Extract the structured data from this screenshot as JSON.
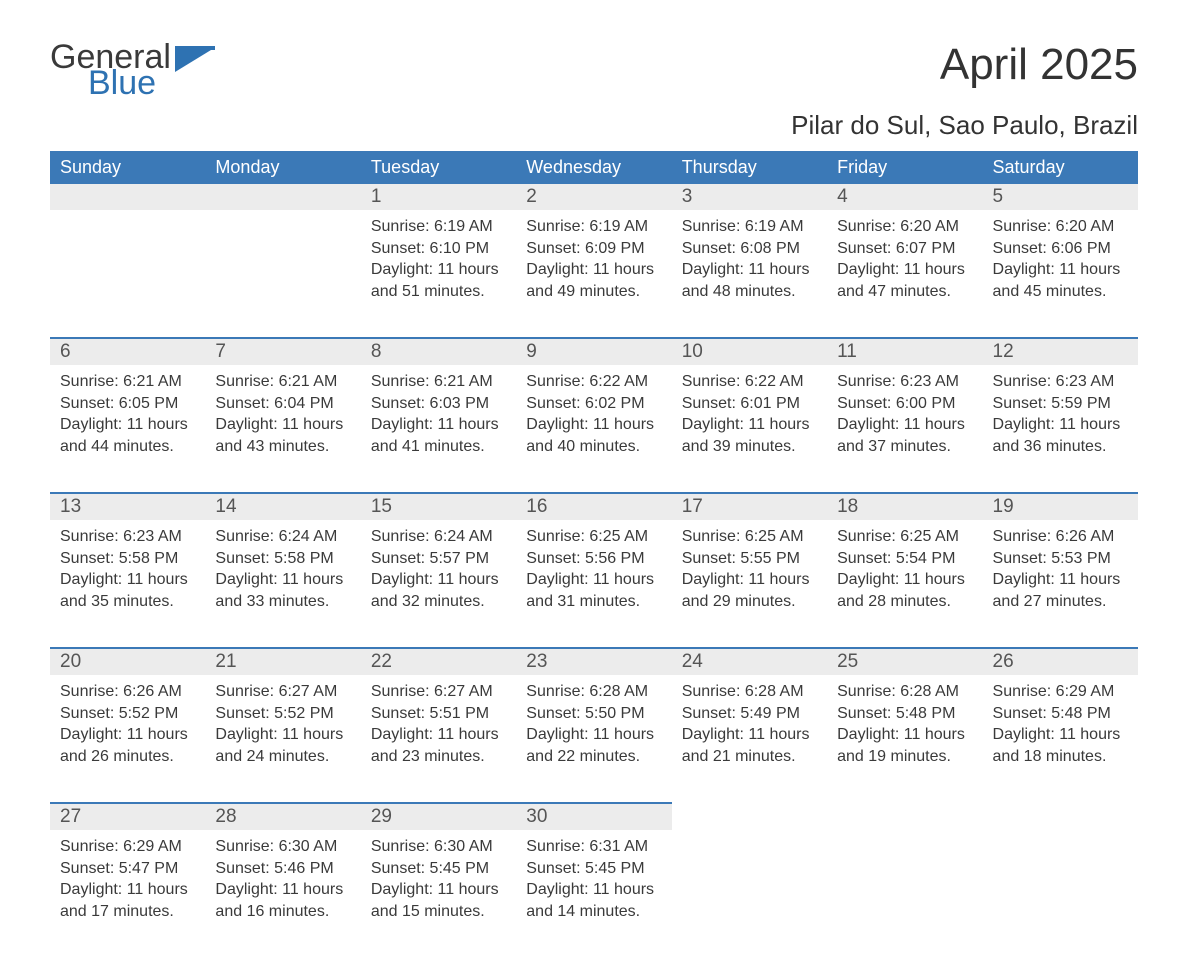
{
  "logo": {
    "text1": "General",
    "text2": "Blue",
    "icon_color": "#2e72b2"
  },
  "title": "April 2025",
  "subtitle": "Pilar do Sul, Sao Paulo, Brazil",
  "colors": {
    "header_bg": "#3b79b7",
    "header_text": "#ffffff",
    "daynum_bg": "#ececec",
    "row_border": "#3b79b7",
    "body_text": "#3a3a3a",
    "brand_blue": "#2e72b2"
  },
  "weekdays": [
    "Sunday",
    "Monday",
    "Tuesday",
    "Wednesday",
    "Thursday",
    "Friday",
    "Saturday"
  ],
  "weeks": [
    [
      null,
      null,
      {
        "n": "1",
        "sunrise": "Sunrise: 6:19 AM",
        "sunset": "Sunset: 6:10 PM",
        "d1": "Daylight: 11 hours",
        "d2": "and 51 minutes."
      },
      {
        "n": "2",
        "sunrise": "Sunrise: 6:19 AM",
        "sunset": "Sunset: 6:09 PM",
        "d1": "Daylight: 11 hours",
        "d2": "and 49 minutes."
      },
      {
        "n": "3",
        "sunrise": "Sunrise: 6:19 AM",
        "sunset": "Sunset: 6:08 PM",
        "d1": "Daylight: 11 hours",
        "d2": "and 48 minutes."
      },
      {
        "n": "4",
        "sunrise": "Sunrise: 6:20 AM",
        "sunset": "Sunset: 6:07 PM",
        "d1": "Daylight: 11 hours",
        "d2": "and 47 minutes."
      },
      {
        "n": "5",
        "sunrise": "Sunrise: 6:20 AM",
        "sunset": "Sunset: 6:06 PM",
        "d1": "Daylight: 11 hours",
        "d2": "and 45 minutes."
      }
    ],
    [
      {
        "n": "6",
        "sunrise": "Sunrise: 6:21 AM",
        "sunset": "Sunset: 6:05 PM",
        "d1": "Daylight: 11 hours",
        "d2": "and 44 minutes."
      },
      {
        "n": "7",
        "sunrise": "Sunrise: 6:21 AM",
        "sunset": "Sunset: 6:04 PM",
        "d1": "Daylight: 11 hours",
        "d2": "and 43 minutes."
      },
      {
        "n": "8",
        "sunrise": "Sunrise: 6:21 AM",
        "sunset": "Sunset: 6:03 PM",
        "d1": "Daylight: 11 hours",
        "d2": "and 41 minutes."
      },
      {
        "n": "9",
        "sunrise": "Sunrise: 6:22 AM",
        "sunset": "Sunset: 6:02 PM",
        "d1": "Daylight: 11 hours",
        "d2": "and 40 minutes."
      },
      {
        "n": "10",
        "sunrise": "Sunrise: 6:22 AM",
        "sunset": "Sunset: 6:01 PM",
        "d1": "Daylight: 11 hours",
        "d2": "and 39 minutes."
      },
      {
        "n": "11",
        "sunrise": "Sunrise: 6:23 AM",
        "sunset": "Sunset: 6:00 PM",
        "d1": "Daylight: 11 hours",
        "d2": "and 37 minutes."
      },
      {
        "n": "12",
        "sunrise": "Sunrise: 6:23 AM",
        "sunset": "Sunset: 5:59 PM",
        "d1": "Daylight: 11 hours",
        "d2": "and 36 minutes."
      }
    ],
    [
      {
        "n": "13",
        "sunrise": "Sunrise: 6:23 AM",
        "sunset": "Sunset: 5:58 PM",
        "d1": "Daylight: 11 hours",
        "d2": "and 35 minutes."
      },
      {
        "n": "14",
        "sunrise": "Sunrise: 6:24 AM",
        "sunset": "Sunset: 5:58 PM",
        "d1": "Daylight: 11 hours",
        "d2": "and 33 minutes."
      },
      {
        "n": "15",
        "sunrise": "Sunrise: 6:24 AM",
        "sunset": "Sunset: 5:57 PM",
        "d1": "Daylight: 11 hours",
        "d2": "and 32 minutes."
      },
      {
        "n": "16",
        "sunrise": "Sunrise: 6:25 AM",
        "sunset": "Sunset: 5:56 PM",
        "d1": "Daylight: 11 hours",
        "d2": "and 31 minutes."
      },
      {
        "n": "17",
        "sunrise": "Sunrise: 6:25 AM",
        "sunset": "Sunset: 5:55 PM",
        "d1": "Daylight: 11 hours",
        "d2": "and 29 minutes."
      },
      {
        "n": "18",
        "sunrise": "Sunrise: 6:25 AM",
        "sunset": "Sunset: 5:54 PM",
        "d1": "Daylight: 11 hours",
        "d2": "and 28 minutes."
      },
      {
        "n": "19",
        "sunrise": "Sunrise: 6:26 AM",
        "sunset": "Sunset: 5:53 PM",
        "d1": "Daylight: 11 hours",
        "d2": "and 27 minutes."
      }
    ],
    [
      {
        "n": "20",
        "sunrise": "Sunrise: 6:26 AM",
        "sunset": "Sunset: 5:52 PM",
        "d1": "Daylight: 11 hours",
        "d2": "and 26 minutes."
      },
      {
        "n": "21",
        "sunrise": "Sunrise: 6:27 AM",
        "sunset": "Sunset: 5:52 PM",
        "d1": "Daylight: 11 hours",
        "d2": "and 24 minutes."
      },
      {
        "n": "22",
        "sunrise": "Sunrise: 6:27 AM",
        "sunset": "Sunset: 5:51 PM",
        "d1": "Daylight: 11 hours",
        "d2": "and 23 minutes."
      },
      {
        "n": "23",
        "sunrise": "Sunrise: 6:28 AM",
        "sunset": "Sunset: 5:50 PM",
        "d1": "Daylight: 11 hours",
        "d2": "and 22 minutes."
      },
      {
        "n": "24",
        "sunrise": "Sunrise: 6:28 AM",
        "sunset": "Sunset: 5:49 PM",
        "d1": "Daylight: 11 hours",
        "d2": "and 21 minutes."
      },
      {
        "n": "25",
        "sunrise": "Sunrise: 6:28 AM",
        "sunset": "Sunset: 5:48 PM",
        "d1": "Daylight: 11 hours",
        "d2": "and 19 minutes."
      },
      {
        "n": "26",
        "sunrise": "Sunrise: 6:29 AM",
        "sunset": "Sunset: 5:48 PM",
        "d1": "Daylight: 11 hours",
        "d2": "and 18 minutes."
      }
    ],
    [
      {
        "n": "27",
        "sunrise": "Sunrise: 6:29 AM",
        "sunset": "Sunset: 5:47 PM",
        "d1": "Daylight: 11 hours",
        "d2": "and 17 minutes."
      },
      {
        "n": "28",
        "sunrise": "Sunrise: 6:30 AM",
        "sunset": "Sunset: 5:46 PM",
        "d1": "Daylight: 11 hours",
        "d2": "and 16 minutes."
      },
      {
        "n": "29",
        "sunrise": "Sunrise: 6:30 AM",
        "sunset": "Sunset: 5:45 PM",
        "d1": "Daylight: 11 hours",
        "d2": "and 15 minutes."
      },
      {
        "n": "30",
        "sunrise": "Sunrise: 6:31 AM",
        "sunset": "Sunset: 5:45 PM",
        "d1": "Daylight: 11 hours",
        "d2": "and 14 minutes."
      },
      null,
      null,
      null
    ]
  ]
}
